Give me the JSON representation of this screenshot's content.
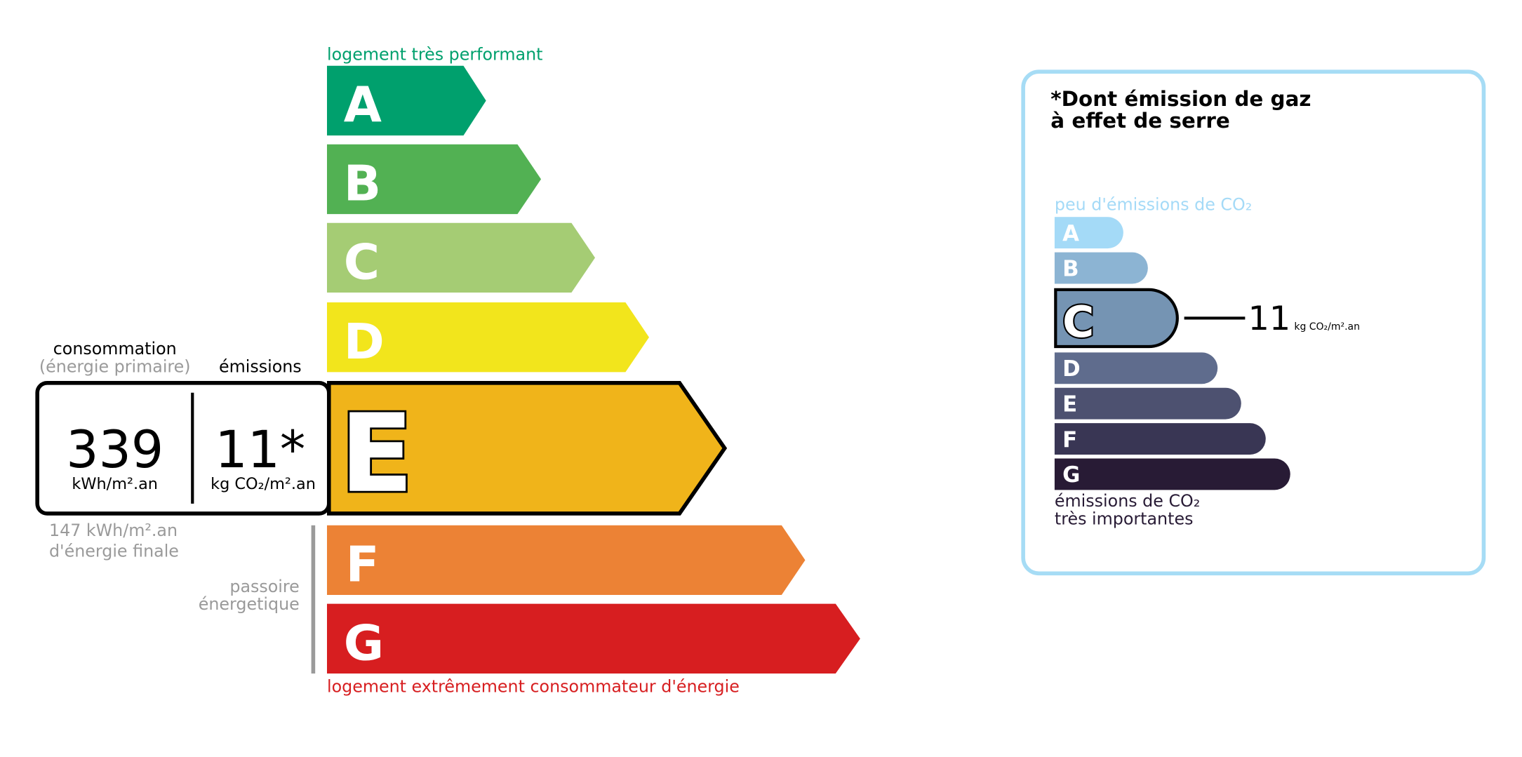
{
  "energy": {
    "top_label": "logement très performant",
    "bottom_label": "logement extrêmement consommateur d'énergie",
    "classes": [
      {
        "letter": "A",
        "color": "#00a06d"
      },
      {
        "letter": "B",
        "color": "#52b153"
      },
      {
        "letter": "C",
        "color": "#a5cc74"
      },
      {
        "letter": "D",
        "color": "#f2e51c"
      },
      {
        "letter": "E",
        "color": "#f0b41a"
      },
      {
        "letter": "F",
        "color": "#ec8235"
      },
      {
        "letter": "G",
        "color": "#d71e20"
      }
    ],
    "current_class": "E",
    "consumption_label": "consommation",
    "consumption_sub": "(énergie primaire)",
    "emissions_label": "émissions",
    "consumption_value": "339",
    "consumption_unit": "kWh/m².an",
    "emissions_value": "11*",
    "emissions_unit": "kg CO₂/m².an",
    "final_energy_line1": "147 kWh/m².an",
    "final_energy_line2": "d'énergie finale",
    "passoire_line1": "passoire",
    "passoire_line2": "énergetique"
  },
  "ges": {
    "title_line1": "*Dont émission de gaz",
    "title_line2": "à effet de serre",
    "top_label": "peu d'émissions de CO₂",
    "bottom_line1": "émissions de CO₂",
    "bottom_line2": "très importantes",
    "border_color": "#a6dcf5",
    "classes": [
      {
        "letter": "A",
        "color": "#a4daf7"
      },
      {
        "letter": "B",
        "color": "#8cb4d3"
      },
      {
        "letter": "C",
        "color": "#7594b3"
      },
      {
        "letter": "D",
        "color": "#5f6c8d"
      },
      {
        "letter": "E",
        "color": "#4d5170"
      },
      {
        "letter": "F",
        "color": "#393654"
      },
      {
        "letter": "G",
        "color": "#281b35"
      }
    ],
    "current_class": "C",
    "value": "11",
    "unit": "kg CO₂/m².an"
  }
}
